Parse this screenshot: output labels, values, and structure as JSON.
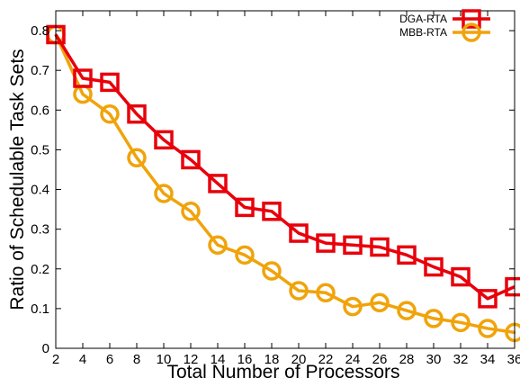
{
  "chart_data": {
    "type": "line",
    "title": "",
    "xlabel": "Total Number of Processors",
    "ylabel": "Ratio of Schedulable Task Sets",
    "x": [
      2,
      4,
      6,
      8,
      10,
      12,
      14,
      16,
      18,
      20,
      22,
      24,
      26,
      28,
      30,
      32,
      34,
      36
    ],
    "xticks": [
      2,
      4,
      6,
      8,
      10,
      12,
      14,
      16,
      18,
      20,
      22,
      24,
      26,
      28,
      30,
      32,
      34,
      36
    ],
    "yticks": [
      0,
      0.1,
      0.2,
      0.3,
      0.4,
      0.5,
      0.6,
      0.7,
      0.8
    ],
    "xlim": [
      2,
      36
    ],
    "ylim": [
      0,
      0.85
    ],
    "grid": false,
    "legend_position": "top-right",
    "series": [
      {
        "name": "DGA-RTA",
        "color": "#e8000b",
        "marker": "square",
        "values": [
          0.79,
          0.68,
          0.67,
          0.59,
          0.525,
          0.475,
          0.415,
          0.355,
          0.345,
          0.29,
          0.265,
          0.26,
          0.255,
          0.235,
          0.205,
          0.18,
          0.125,
          0.155
        ]
      },
      {
        "name": "MBB-RTA",
        "color": "#f0a30a",
        "marker": "circle",
        "values": [
          0.79,
          0.64,
          0.59,
          0.48,
          0.39,
          0.345,
          0.26,
          0.235,
          0.195,
          0.145,
          0.14,
          0.105,
          0.115,
          0.095,
          0.075,
          0.065,
          0.05,
          0.04
        ]
      }
    ]
  }
}
